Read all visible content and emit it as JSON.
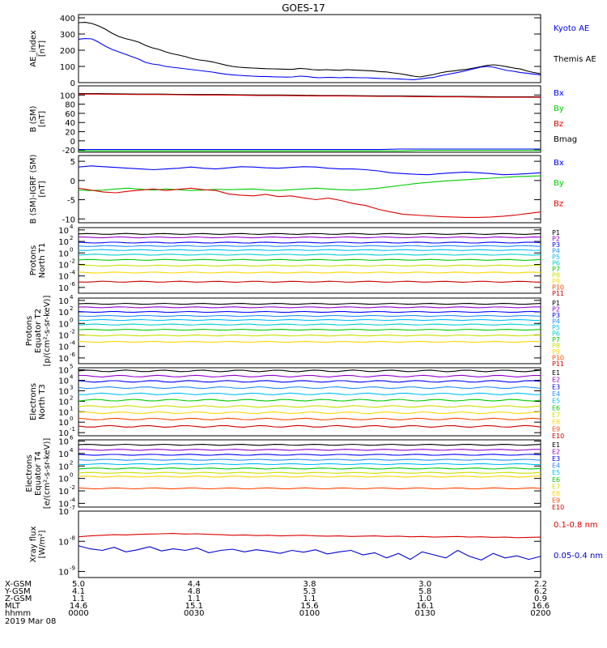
{
  "title": "GOES-17",
  "chart_data": [
    {
      "type": "line",
      "ylabel": [
        "AE_index",
        "[nT]"
      ],
      "yticks": [
        "0",
        "100",
        "200",
        "300",
        "400"
      ],
      "ylim": [
        0,
        420
      ],
      "legend": [
        {
          "name": "Kyoto AE",
          "color": "#0000ff"
        },
        {
          "name": "Themis AE",
          "color": "#000000"
        }
      ],
      "series": [
        {
          "name": "Themis AE",
          "color": "#000000",
          "values": [
            370,
            372,
            365,
            350,
            330,
            305,
            285,
            272,
            262,
            250,
            230,
            215,
            205,
            190,
            178,
            170,
            160,
            148,
            140,
            135,
            128,
            118,
            108,
            100,
            95,
            92,
            90,
            88,
            86,
            85,
            84,
            82,
            82,
            88,
            85,
            80,
            78,
            80,
            78,
            76,
            80,
            78,
            76,
            74,
            72,
            68,
            66,
            60,
            55,
            48,
            40,
            35,
            42,
            50,
            60,
            68,
            72,
            78,
            82,
            90,
            98,
            106,
            110,
            105,
            98,
            90,
            84,
            72,
            62,
            55
          ]
        },
        {
          "name": "Kyoto AE",
          "color": "#0000ff",
          "values": [
            268,
            272,
            270,
            250,
            225,
            205,
            190,
            175,
            160,
            145,
            125,
            115,
            110,
            100,
            95,
            90,
            85,
            80,
            75,
            70,
            65,
            58,
            52,
            48,
            45,
            42,
            40,
            38,
            38,
            36,
            35,
            34,
            35,
            40,
            38,
            33,
            30,
            32,
            32,
            30,
            32,
            31,
            30,
            30,
            28,
            26,
            25,
            24,
            22,
            20,
            18,
            22,
            28,
            32,
            42,
            50,
            58,
            66,
            75,
            85,
            95,
            100,
            95,
            85,
            75,
            70,
            62,
            58,
            52,
            48
          ]
        }
      ]
    },
    {
      "type": "line",
      "ylabel": [
        "B (SM)",
        "[nT]"
      ],
      "yticks": [
        "-20",
        "0",
        "20",
        "40",
        "60",
        "80",
        "100"
      ],
      "ylim": [
        -25,
        120
      ],
      "legend": [
        {
          "name": "Bx",
          "color": "#0000ff"
        },
        {
          "name": "By",
          "color": "#00cc00"
        },
        {
          "name": "Bz",
          "color": "#dd0000"
        },
        {
          "name": "Bmag",
          "color": "#000000"
        }
      ],
      "series": [
        {
          "name": "Bmag",
          "color": "#000000",
          "values": [
            103,
            103,
            102.5,
            102,
            102,
            101.5,
            101,
            101,
            100.5,
            100,
            100,
            99.5,
            99,
            99,
            98.5,
            98,
            98,
            97.5,
            97,
            97,
            96.5,
            96,
            96,
            96
          ]
        },
        {
          "name": "Bz",
          "color": "#dd0000",
          "values": [
            102,
            102,
            101.5,
            101,
            101,
            100.5,
            100,
            100,
            99.5,
            99,
            99,
            98.5,
            98,
            98,
            97.5,
            97,
            97,
            96.5,
            96,
            96,
            95.5,
            95,
            95,
            95
          ]
        },
        {
          "name": "Bx",
          "color": "#0000ff",
          "values": [
            -19,
            -19,
            -19,
            -19,
            -19,
            -19,
            -19,
            -19,
            -19,
            -19,
            -19,
            -19,
            -19,
            -19,
            -19,
            -19,
            -18,
            -18,
            -18,
            -18,
            -18,
            -18,
            -18,
            -18
          ]
        },
        {
          "name": "By",
          "color": "#00cc00",
          "values": [
            -22,
            -22,
            -22,
            -22,
            -22,
            -22,
            -22,
            -22,
            -22,
            -22,
            -22,
            -22,
            -22,
            -22,
            -22,
            -22,
            -22,
            -21,
            -21,
            -21,
            -21,
            -21,
            -21,
            -21
          ]
        }
      ]
    },
    {
      "type": "line",
      "ylabel": [
        "B (SM)-IGRF (SM)",
        "[nT]"
      ],
      "yticks": [
        "-10",
        "-5",
        "0",
        "5"
      ],
      "ylim": [
        -11,
        6.5
      ],
      "legend": [
        {
          "name": "Bx",
          "color": "#0000ff"
        },
        {
          "name": "By",
          "color": "#00cc00"
        },
        {
          "name": "Bz",
          "color": "#dd0000"
        }
      ],
      "series": [
        {
          "name": "Bx",
          "color": "#0000ff",
          "values": [
            3.5,
            3.8,
            3.6,
            3.4,
            3.2,
            3.0,
            2.8,
            3.0,
            3.2,
            3.5,
            3.2,
            3.0,
            3.3,
            3.6,
            3.5,
            3.3,
            3.2,
            3.4,
            3.6,
            3.5,
            3.2,
            3.0,
            3.0,
            2.8,
            2.5,
            2.0,
            1.8,
            1.6,
            1.5,
            1.8,
            2.0,
            2.2,
            2.0,
            1.8,
            1.5,
            1.6,
            1.8,
            2.0
          ]
        },
        {
          "name": "By",
          "color": "#00cc00",
          "values": [
            -2.5,
            -2.6,
            -2.5,
            -2.2,
            -2.0,
            -2.3,
            -2.5,
            -2.2,
            -2.4,
            -2.6,
            -2.5,
            -2.3,
            -2.4,
            -2.3,
            -2.2,
            -2.5,
            -2.6,
            -2.4,
            -2.2,
            -2.0,
            -2.2,
            -2.4,
            -2.5,
            -2.3,
            -2.0,
            -1.6,
            -1.2,
            -0.8,
            -0.5,
            -0.2,
            0.0,
            0.2,
            0.4,
            0.6,
            0.8,
            1.0,
            1.1,
            1.2
          ]
        },
        {
          "name": "Bz",
          "color": "#dd0000",
          "values": [
            -2.0,
            -2.5,
            -3.0,
            -3.2,
            -2.8,
            -2.5,
            -2.2,
            -2.6,
            -2.3,
            -2.0,
            -2.4,
            -2.6,
            -3.5,
            -3.8,
            -4.0,
            -3.6,
            -4.2,
            -4.0,
            -4.5,
            -5.0,
            -4.6,
            -5.2,
            -6.0,
            -6.5,
            -7.5,
            -8.2,
            -8.8,
            -9.0,
            -9.2,
            -9.4,
            -9.5,
            -9.6,
            -9.6,
            -9.5,
            -9.3,
            -9.0,
            -8.6,
            -8.2
          ]
        }
      ]
    },
    {
      "type": "line",
      "log": true,
      "ylabel": [
        "Protons",
        "North T1"
      ],
      "ytick_exponents": [
        -6,
        -4,
        -2,
        0,
        2,
        4
      ],
      "ylim_log10": [
        -7,
        4.4
      ],
      "channels": [
        "P1",
        "P2",
        "P3",
        "P4",
        "P5",
        "P6",
        "P7",
        "P8",
        "P9",
        "P10",
        "P11"
      ],
      "channel_colors": [
        "#000000",
        "#9400d3",
        "#0000ff",
        "#1e90ff",
        "#00bfff",
        "#00ced1",
        "#00cc00",
        "#c8e000",
        "#ffd700",
        "#ff4500",
        "#cc0000"
      ],
      "log10_levels": [
        3.3,
        2.7,
        1.8,
        1.2,
        0.5,
        -0.3,
        -1.2,
        -2.2,
        -3.4,
        null,
        -5.0
      ],
      "note": "P11 segment visible only near 0018–0024"
    },
    {
      "type": "line",
      "log": true,
      "ylabel": [
        "Protons",
        "Equator T2",
        "[p/(cm²-s-sr-keV)]"
      ],
      "ytick_exponents": [
        -6,
        -4,
        -2,
        0,
        2,
        4
      ],
      "ylim_log10": [
        -7,
        4.4
      ],
      "channels": [
        "P1",
        "P2",
        "P3",
        "P4",
        "P5",
        "P6",
        "P7",
        "P8",
        "P9",
        "P10",
        "P11"
      ],
      "channel_colors": [
        "#000000",
        "#9400d3",
        "#0000ff",
        "#1e90ff",
        "#00bfff",
        "#00ced1",
        "#00cc00",
        "#c8e000",
        "#ffd700",
        "#ff4500",
        "#cc0000"
      ],
      "log10_levels": [
        3.4,
        2.8,
        2.0,
        1.3,
        0.6,
        -0.2,
        -1.1,
        -2.1,
        -3.2,
        null,
        null
      ]
    },
    {
      "type": "line",
      "log": true,
      "ylabel": [
        "Electrons",
        "North T3"
      ],
      "ytick_exponents": [
        -1,
        0,
        1,
        2,
        3,
        4,
        5
      ],
      "ylim_log10": [
        -1.3,
        5.2
      ],
      "channels": [
        "E1",
        "E2",
        "E3",
        "E4",
        "E5",
        "E6",
        "E7",
        "E8",
        "E9",
        "E10"
      ],
      "channel_colors": [
        "#000000",
        "#9400d3",
        "#0000ff",
        "#1e90ff",
        "#00bfff",
        "#00cc00",
        "#c8e000",
        "#ffd700",
        "#ff4500",
        "#cc0000"
      ],
      "log10_levels": [
        4.9,
        4.4,
        3.9,
        3.3,
        2.7,
        2.1,
        1.5,
        0.9,
        0.3,
        -0.4
      ]
    },
    {
      "type": "line",
      "log": true,
      "ylabel": [
        "Electrons",
        "Equator T4",
        "[e/(cm²-s-sr-keV)]"
      ],
      "ytick_exponents": [
        -4,
        -2,
        0,
        2,
        4,
        6
      ],
      "ylim_log10": [
        -4.6,
        6.2
      ],
      "channels": [
        "E1",
        "E2",
        "E3",
        "E4",
        "E5",
        "E6",
        "E7",
        "E8",
        "E9",
        "E10"
      ],
      "channel_colors": [
        "#000000",
        "#9400d3",
        "#0000ff",
        "#1e90ff",
        "#00bfff",
        "#00cc00",
        "#c8e000",
        "#ffd700",
        "#ff4500",
        "#cc0000"
      ],
      "log10_levels": [
        5.4,
        4.6,
        3.8,
        3.0,
        2.3,
        1.6,
        0.9,
        0.3,
        -1.6,
        null
      ],
      "note": "E9 segmented"
    },
    {
      "type": "line",
      "log": true,
      "ylabel": [
        "Xray flux",
        "[W/m²]"
      ],
      "ytick_exponents": [
        -9,
        -8,
        -7
      ],
      "ylim_log10": [
        -9.2,
        -7
      ],
      "legend": [
        {
          "name": "0.1-0.8 nm",
          "color": "#dd0000"
        },
        {
          "name": "0.05-0.4 nm",
          "color": "#0000cc"
        }
      ],
      "series": [
        {
          "name": "0.1-0.8 nm",
          "color": "#dd0000",
          "log10": [
            -7.85,
            -7.82,
            -7.8,
            -7.78,
            -7.79,
            -7.77,
            -7.76,
            -7.75,
            -7.74,
            -7.76,
            -7.75,
            -7.77,
            -7.78,
            -7.8,
            -7.79,
            -7.81,
            -7.8,
            -7.82,
            -7.81,
            -7.8,
            -7.82,
            -7.83,
            -7.82,
            -7.84,
            -7.83,
            -7.82,
            -7.84,
            -7.83,
            -7.85,
            -7.84,
            -7.86,
            -7.85,
            -7.84,
            -7.86,
            -7.85,
            -7.87,
            -7.86,
            -7.88,
            -7.87,
            -7.86
          ]
        },
        {
          "name": "0.05-0.4 nm",
          "color": "#0000cc",
          "log10": [
            -8.15,
            -8.25,
            -8.3,
            -8.2,
            -8.35,
            -8.28,
            -8.18,
            -8.32,
            -8.25,
            -8.3,
            -8.22,
            -8.38,
            -8.3,
            -8.26,
            -8.35,
            -8.28,
            -8.33,
            -8.4,
            -8.3,
            -8.36,
            -8.28,
            -8.42,
            -8.35,
            -8.3,
            -8.45,
            -8.38,
            -8.55,
            -8.4,
            -8.6,
            -8.35,
            -8.45,
            -8.55,
            -8.3,
            -8.5,
            -8.62,
            -8.4,
            -8.55,
            -8.48,
            -8.6,
            -8.5
          ]
        }
      ]
    }
  ],
  "xaxis": {
    "row_labels": [
      "X-GSM",
      "Y-GSM",
      "Z-GSM",
      "MLT",
      "hhmm",
      "2019 Mar 08"
    ],
    "ticks": [
      {
        "values": [
          "5.0",
          "4.1",
          "1.1",
          "14.6",
          "0000"
        ]
      },
      {
        "values": [
          "4.4",
          "4.8",
          "1.1",
          "15.1",
          "0030"
        ]
      },
      {
        "values": [
          "3.8",
          "5.3",
          "1.1",
          "15.6",
          "0100"
        ]
      },
      {
        "values": [
          "3.0",
          "5.8",
          "1.0",
          "16.1",
          "0130"
        ]
      },
      {
        "values": [
          "2.2",
          "6.2",
          "0.9",
          "16.6",
          "0200"
        ]
      }
    ]
  }
}
